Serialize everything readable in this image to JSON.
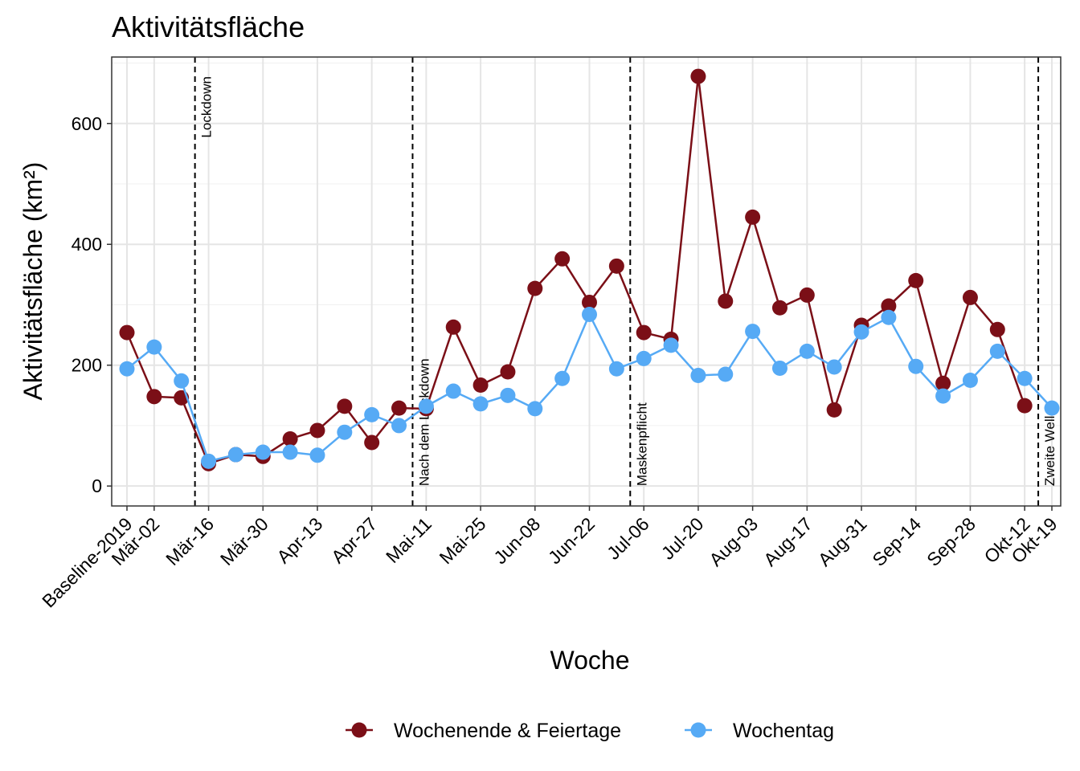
{
  "chart_data": {
    "type": "line",
    "title": "Aktivitätsfläche",
    "x_label": "Woche",
    "y_label": "Aktivitätsfläche (km²)",
    "categories": [
      "Baseline-2019",
      "Mär-02",
      null,
      "Mär-16",
      null,
      "Mär-30",
      null,
      "Apr-13",
      null,
      "Apr-27",
      null,
      "Mai-11",
      null,
      "Mai-25",
      null,
      "Jun-08",
      null,
      "Jun-22",
      null,
      "Jul-06",
      null,
      "Jul-20",
      null,
      "Aug-03",
      null,
      "Aug-17",
      null,
      "Aug-31",
      null,
      "Sep-14",
      null,
      "Sep-28",
      null,
      "Okt-12",
      "Okt-19"
    ],
    "series": [
      {
        "name": "Wochenende & Feiertage",
        "color": "#7b0f17",
        "values": [
          254,
          148,
          146,
          37,
          52,
          49,
          78,
          92,
          132,
          72,
          129,
          128,
          263,
          167,
          189,
          327,
          376,
          304,
          364,
          254,
          243,
          678,
          306,
          445,
          295,
          316,
          126,
          266,
          298,
          340,
          170,
          312,
          259,
          133,
          null
        ]
      },
      {
        "name": "Wochentag",
        "color": "#56aaf5",
        "values": [
          194,
          230,
          174,
          41,
          52,
          56,
          56,
          51,
          89,
          118,
          100,
          132,
          157,
          136,
          150,
          128,
          178,
          284,
          194,
          211,
          233,
          183,
          185,
          256,
          195,
          223,
          197,
          255,
          279,
          198,
          149,
          175,
          223,
          178,
          129
        ]
      }
    ],
    "annotations": [
      {
        "x": 2.5,
        "label": "Lockdown"
      },
      {
        "x": 10.5,
        "label": "Nach dem Lockdown"
      },
      {
        "x": 18.5,
        "label": "Maskenpflicht"
      },
      {
        "x": 33.5,
        "label": "Zweite Welle"
      }
    ],
    "ylim": [
      -33,
      710
    ],
    "yticks": [
      0,
      200,
      400,
      600
    ],
    "grid": true,
    "legend": "bottom"
  }
}
